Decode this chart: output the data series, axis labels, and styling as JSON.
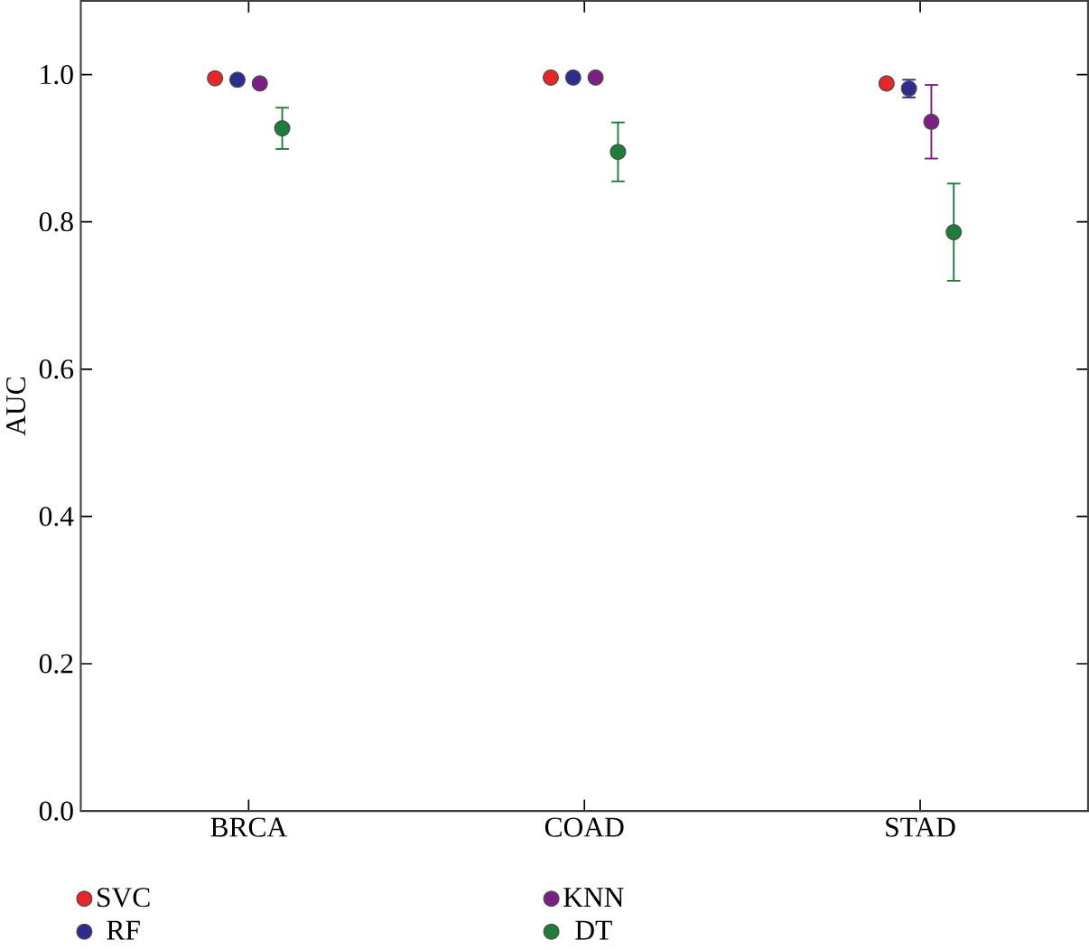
{
  "chart_data": {
    "type": "scatter",
    "ylabel": "AUC",
    "categories": [
      "BRCA",
      "COAD",
      "STAD"
    ],
    "ylim": [
      0,
      1.1
    ],
    "yticks": [
      {
        "value": 0,
        "label": "0.0"
      },
      {
        "value": 0.2,
        "label": "0.2"
      },
      {
        "value": 0.4,
        "label": "0.4"
      },
      {
        "value": 0.6,
        "label": "0.6"
      },
      {
        "value": 0.8,
        "label": "0.8"
      },
      {
        "value": 1.0,
        "label": "1.0"
      }
    ],
    "marker": "circle",
    "legend": "bottom",
    "grid": false,
    "series": [
      {
        "name": "SVC",
        "color": "#e8262a",
        "values": [
          0.995,
          0.996,
          0.988
        ]
      },
      {
        "name": "RF",
        "color": "#302c8e",
        "values": [
          0.993,
          0.996,
          0.981
        ],
        "errors": [
          null,
          null,
          0.012
        ]
      },
      {
        "name": "KNN",
        "color": "#7b1f84",
        "values": [
          0.988,
          0.996,
          0.936
        ],
        "errors": [
          null,
          null,
          0.05
        ]
      },
      {
        "name": "DT",
        "color": "#1f7d3a",
        "values": [
          0.927,
          0.895,
          0.786
        ],
        "errors": [
          0.028,
          0.04,
          0.066
        ]
      }
    ]
  }
}
